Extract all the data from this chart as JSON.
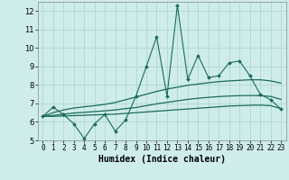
{
  "title": "",
  "xlabel": "Humidex (Indice chaleur)",
  "ylabel": "",
  "background_color": "#ceecea",
  "plot_bg_color": "#ceecea",
  "grid_color": "#b0d8d4",
  "line_color": "#1a6b5a",
  "x_data": [
    0,
    1,
    2,
    3,
    4,
    5,
    6,
    7,
    8,
    9,
    10,
    11,
    12,
    13,
    14,
    15,
    16,
    17,
    18,
    19,
    20,
    21,
    22,
    23
  ],
  "y_jagged": [
    6.3,
    6.8,
    6.4,
    5.9,
    5.1,
    5.9,
    6.4,
    5.5,
    6.1,
    7.4,
    9.0,
    10.6,
    7.4,
    12.3,
    8.3,
    9.6,
    8.4,
    8.5,
    9.2,
    9.3,
    8.5,
    7.5,
    7.2,
    6.7
  ],
  "y_upper": [
    6.3,
    6.5,
    6.65,
    6.75,
    6.82,
    6.88,
    6.95,
    7.05,
    7.2,
    7.35,
    7.5,
    7.65,
    7.78,
    7.88,
    7.98,
    8.05,
    8.12,
    8.18,
    8.22,
    8.25,
    8.28,
    8.28,
    8.22,
    8.1
  ],
  "y_mid": [
    6.3,
    6.35,
    6.42,
    6.48,
    6.52,
    6.56,
    6.6,
    6.65,
    6.72,
    6.78,
    6.88,
    6.98,
    7.06,
    7.14,
    7.22,
    7.28,
    7.33,
    7.37,
    7.4,
    7.42,
    7.43,
    7.42,
    7.38,
    7.22
  ],
  "y_lower": [
    6.3,
    6.3,
    6.32,
    6.34,
    6.36,
    6.38,
    6.4,
    6.42,
    6.46,
    6.5,
    6.54,
    6.58,
    6.62,
    6.66,
    6.7,
    6.74,
    6.78,
    6.82,
    6.86,
    6.88,
    6.9,
    6.91,
    6.88,
    6.72
  ],
  "ylim": [
    5,
    12.5
  ],
  "xlim": [
    -0.5,
    23.5
  ],
  "yticks": [
    5,
    6,
    7,
    8,
    9,
    10,
    11,
    12
  ],
  "xticks": [
    0,
    1,
    2,
    3,
    4,
    5,
    6,
    7,
    8,
    9,
    10,
    11,
    12,
    13,
    14,
    15,
    16,
    17,
    18,
    19,
    20,
    21,
    22,
    23
  ]
}
